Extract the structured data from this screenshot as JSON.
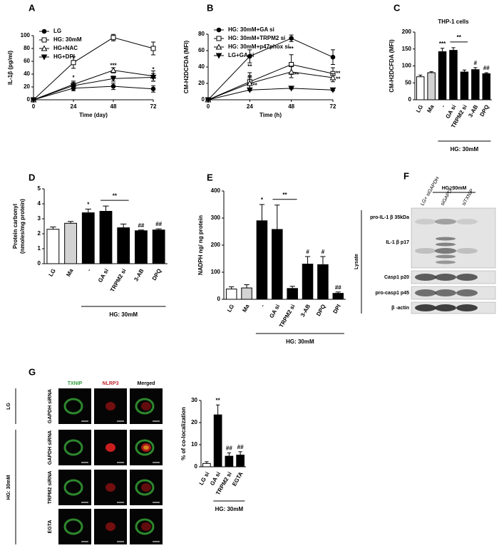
{
  "chart_data": [
    {
      "panel": "A",
      "type": "line",
      "ylabel": "IL-1β (pg/ml)",
      "xlabel": "Time (day)",
      "x": [
        0,
        24,
        48,
        72
      ],
      "xlim": [
        0,
        72
      ],
      "xticks": [
        0,
        24,
        48,
        72
      ],
      "ylim": [
        0,
        100
      ],
      "yticks": [
        0,
        20,
        40,
        60,
        80,
        100
      ],
      "legend": "upper left",
      "color": "#000000",
      "series": [
        {
          "name": "LG",
          "marker": "circle-filled",
          "values": [
            0,
            18,
            21,
            17
          ],
          "errors": [
            0,
            4,
            5,
            5
          ]
        },
        {
          "name": "HG: 30mM",
          "marker": "square-open",
          "values": [
            0,
            58,
            97,
            80
          ],
          "errors": [
            0,
            9,
            5,
            10
          ]
        },
        {
          "name": "HG+NAC",
          "marker": "triangle-open",
          "values": [
            0,
            24,
            46,
            37
          ],
          "errors": [
            0,
            5,
            4,
            8
          ]
        },
        {
          "name": "HG+DPI",
          "marker": "triangle-down-filled",
          "values": [
            0,
            22,
            33,
            35
          ],
          "errors": [
            0,
            5,
            4,
            6
          ]
        }
      ],
      "annotations": [
        {
          "text": "*",
          "x": 24,
          "y": 34
        },
        {
          "text": "***",
          "x": 48,
          "y": 53
        },
        {
          "text": "*",
          "x": 72,
          "y": 47
        }
      ]
    },
    {
      "panel": "B",
      "type": "line",
      "ylabel": "CM-H2DCFDA (MFI)",
      "xlabel": "Time (h)",
      "x": [
        0,
        24,
        48,
        72
      ],
      "xlim": [
        0,
        72
      ],
      "xticks": [
        0,
        24,
        48,
        72
      ],
      "ylim": [
        0,
        80
      ],
      "yticks": [
        0,
        20,
        40,
        60,
        80
      ],
      "legend": "upper left",
      "color": "#000000",
      "series": [
        {
          "name": "HG: 30mM+GA si",
          "marker": "circle-filled",
          "values": [
            0,
            53,
            75,
            52
          ],
          "errors": [
            0,
            8,
            4,
            9
          ]
        },
        {
          "name": "HG: 30mM+TRPM2 si",
          "marker": "square-open",
          "values": [
            0,
            22,
            43,
            32
          ],
          "errors": [
            0,
            11,
            12,
            7
          ]
        },
        {
          "name": "HG: 30mM+p47phox si",
          "marker": "triangle-open",
          "values": [
            0,
            20,
            34,
            27
          ],
          "errors": [
            0,
            7,
            7,
            5
          ]
        },
        {
          "name": "LG+GA si",
          "marker": "triangle-down-filled",
          "values": [
            0,
            12,
            14,
            12
          ],
          "errors": [
            0,
            1,
            1,
            1
          ]
        }
      ],
      "annotations": [
        {
          "text": "**",
          "x": 24,
          "y": 40
        },
        {
          "text": "**",
          "x": 24,
          "y": 27
        },
        {
          "text": "**",
          "x": 27,
          "y": 17
        },
        {
          "text": "**",
          "x": 48,
          "y": 62
        },
        {
          "text": "**",
          "x": 51,
          "y": 30
        },
        {
          "text": "**",
          "x": 75,
          "y": 32
        },
        {
          "text": "**",
          "x": 75,
          "y": 25
        }
      ]
    },
    {
      "panel": "C",
      "type": "bar",
      "title": "THP-1 cells",
      "ylabel": "CM-H2DCFDA (MFI)",
      "categories": [
        "LG",
        "Ma",
        "-",
        "GA si",
        "TRPM2 si",
        "3-AB",
        "DPQ"
      ],
      "values": [
        68,
        80,
        142,
        146,
        82,
        89,
        77
      ],
      "errors": [
        5,
        3,
        10,
        8,
        6,
        6,
        3
      ],
      "colors": [
        "#ffffff",
        "#d3d3d3",
        "#000000",
        "#000000",
        "#000000",
        "#000000",
        "#000000"
      ],
      "ylim": [
        0,
        200
      ],
      "yticks": [
        0,
        50,
        100,
        150,
        200
      ],
      "group": {
        "label": "HG: 30mM",
        "from": "-",
        "to": "DPQ"
      },
      "annotations": [
        {
          "text": "***",
          "category": "-"
        },
        {
          "text": "**",
          "from": "GA si",
          "to": "TRPM2 si"
        },
        {
          "text": "#",
          "category": "3-AB"
        },
        {
          "text": "##",
          "category": "DPQ"
        }
      ]
    },
    {
      "panel": "D",
      "type": "bar",
      "ylabel": [
        "Protein carbonyl",
        "(nmoles/mg protein)"
      ],
      "categories": [
        "LG",
        "Ma",
        "-",
        "GA si",
        "TRPM2 si",
        "3-AB",
        "DPQ"
      ],
      "values": [
        2.3,
        2.7,
        3.4,
        3.5,
        2.4,
        2.2,
        2.25
      ],
      "errors": [
        0.15,
        0.12,
        0.25,
        0.35,
        0.25,
        0.05,
        0.08
      ],
      "colors": [
        "#ffffff",
        "#d3d3d3",
        "#000000",
        "#000000",
        "#000000",
        "#000000",
        "#000000"
      ],
      "ylim": [
        0,
        5
      ],
      "yticks": [
        0,
        1,
        2,
        3,
        4,
        5
      ],
      "group": {
        "label": "HG: 30mM",
        "from": "-",
        "to": "DPQ"
      },
      "annotations": [
        {
          "text": "*",
          "category": "-"
        },
        {
          "text": "**",
          "from": "GA si",
          "to": "TRPM2 si"
        },
        {
          "text": "##",
          "category": "3-AB"
        },
        {
          "text": "##",
          "category": "DPQ"
        }
      ]
    },
    {
      "panel": "E",
      "type": "bar",
      "ylabel": "NADPH ng/ ng protein",
      "categories": [
        "LG",
        "Ma",
        "-",
        "GA si",
        "TRPM2 si",
        "3-AB",
        "DPQ",
        "DPI"
      ],
      "values": [
        38,
        42,
        290,
        258,
        40,
        130,
        128,
        22
      ],
      "errors": [
        8,
        12,
        60,
        90,
        8,
        28,
        30,
        5
      ],
      "colors": [
        "#ffffff",
        "#d3d3d3",
        "#000000",
        "#000000",
        "#000000",
        "#000000",
        "#000000",
        "#000000"
      ],
      "ylim": [
        0,
        400
      ],
      "yticks": [
        0,
        100,
        200,
        300,
        400
      ],
      "group": {
        "label": "HG: 30mM",
        "from": "-",
        "to": "DPI"
      },
      "annotations": [
        {
          "text": "*",
          "category": "-"
        },
        {
          "text": "**",
          "from": "GA si",
          "to": "TRPM2 si"
        },
        {
          "text": "#",
          "category": "3-AB"
        },
        {
          "text": "#",
          "category": "DPQ"
        },
        {
          "text": "##",
          "category": "DPI"
        }
      ]
    },
    {
      "type": "bar",
      "ylabel": "% of co-localization",
      "categories": [
        "LG si",
        "GA si",
        "TRPM2 si",
        "EGTA"
      ],
      "values": [
        1.5,
        23.5,
        4.8,
        5.3
      ],
      "errors": [
        0.8,
        4.5,
        1.5,
        1.5
      ],
      "colors": [
        "#ffffff",
        "#000000",
        "#000000",
        "#000000"
      ],
      "ylim": [
        0,
        30
      ],
      "yticks": [
        0,
        10,
        20,
        30
      ],
      "group": {
        "label": "HG: 30mM",
        "from": "GA si",
        "to": "EGTA"
      },
      "annotations": [
        {
          "text": "**",
          "category": "GA si"
        },
        {
          "text": "##",
          "category": "TRPM2 si"
        },
        {
          "text": "##",
          "category": "EGTA"
        }
      ]
    }
  ],
  "blot": {
    "panel": "F",
    "group": "HG: 30mM",
    "lanes": [
      "LG+ siGAPDH",
      "siGAPDH",
      "siTXNIP"
    ],
    "bands": [
      "pro-IL-1 β 35kDa",
      "IL-1 β p17",
      "Casp1 p20",
      "pro-casp1 p45",
      "β -actin"
    ],
    "side_label": "Lysate"
  },
  "microscopy": {
    "panel": "G",
    "columns": [
      "TXNIP",
      "NLRP3",
      "Merged"
    ],
    "rows": [
      "GAPDH siRNA",
      "GAPDH siRNA",
      "TRPM2 siRNA",
      "EGTA"
    ],
    "groups": [
      "LG",
      "HG: 30mM"
    ]
  }
}
